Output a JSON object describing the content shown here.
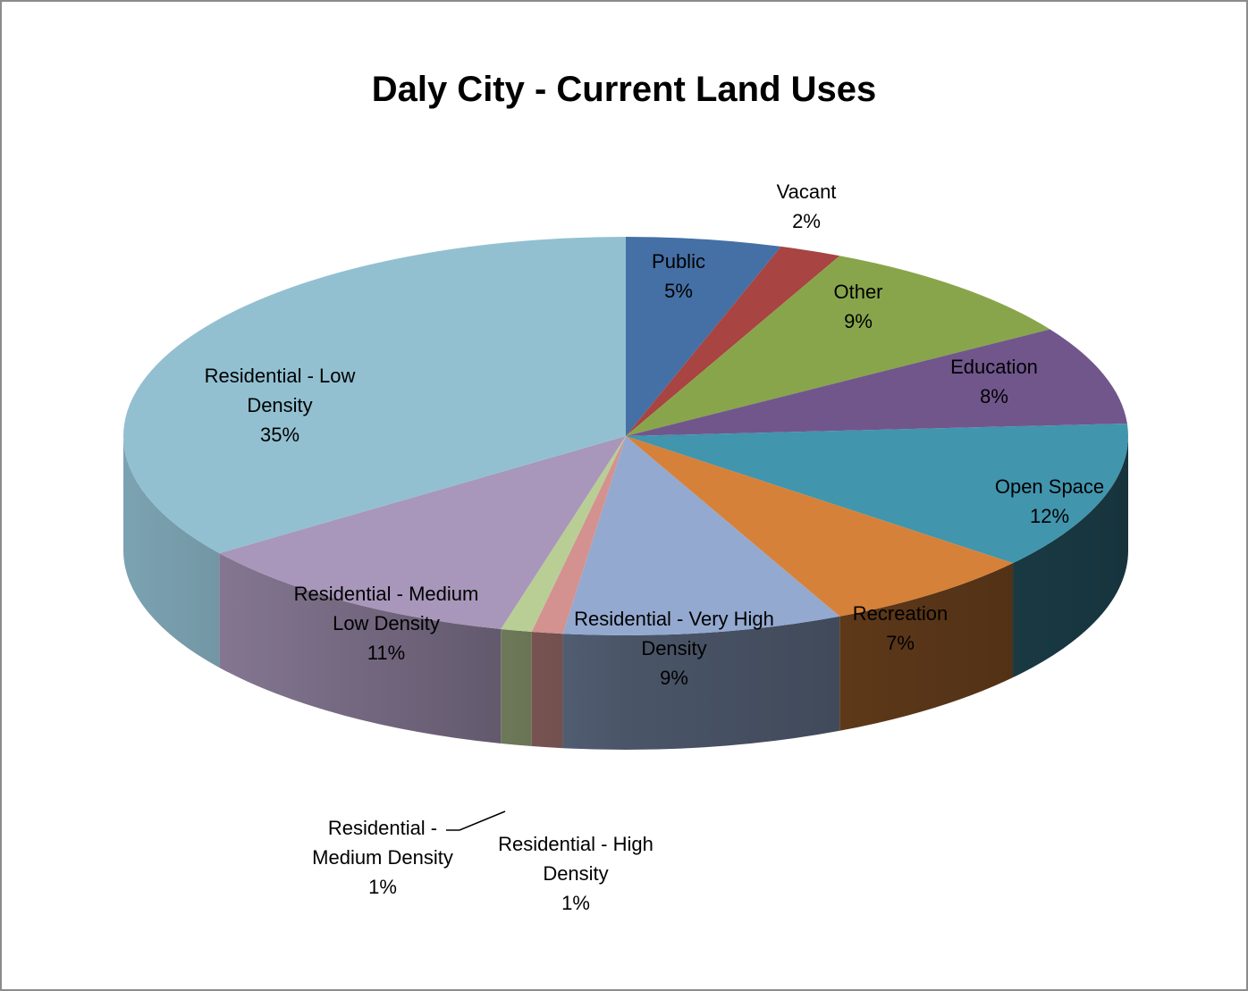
{
  "chart_data": {
    "type": "pie",
    "title": "Daly City - Current Land Uses",
    "slices": [
      {
        "label": "Public",
        "value": 5,
        "percent_label": "5%",
        "color": "#4470a5"
      },
      {
        "label": "Vacant",
        "value": 2,
        "percent_label": "2%",
        "color": "#a84442"
      },
      {
        "label": "Other",
        "value": 9,
        "percent_label": "9%",
        "color": "#88a54b"
      },
      {
        "label": "Education",
        "value": 8,
        "percent_label": "8%",
        "color": "#71568c"
      },
      {
        "label": "Open Space",
        "value": 12,
        "percent_label": "12%",
        "color": "#4195ad"
      },
      {
        "label": "Recreation",
        "value": 7,
        "percent_label": "7%",
        "color": "#d68139"
      },
      {
        "label": "Residential - Very High Density",
        "value": 9,
        "percent_label": "9%",
        "color": "#93a9cf"
      },
      {
        "label": "Residential - High Density",
        "value": 1,
        "percent_label": "1%",
        "color": "#d3928f"
      },
      {
        "label": "Residential - Medium Density",
        "value": 1,
        "percent_label": "1%",
        "color": "#b9ce95"
      },
      {
        "label": "Residential - Medium Low Density",
        "value": 11,
        "percent_label": "11%",
        "color": "#a897ba"
      },
      {
        "label": "Residential - Low Density",
        "value": 35,
        "percent_label": "35%",
        "color": "#92c0d1"
      }
    ]
  }
}
